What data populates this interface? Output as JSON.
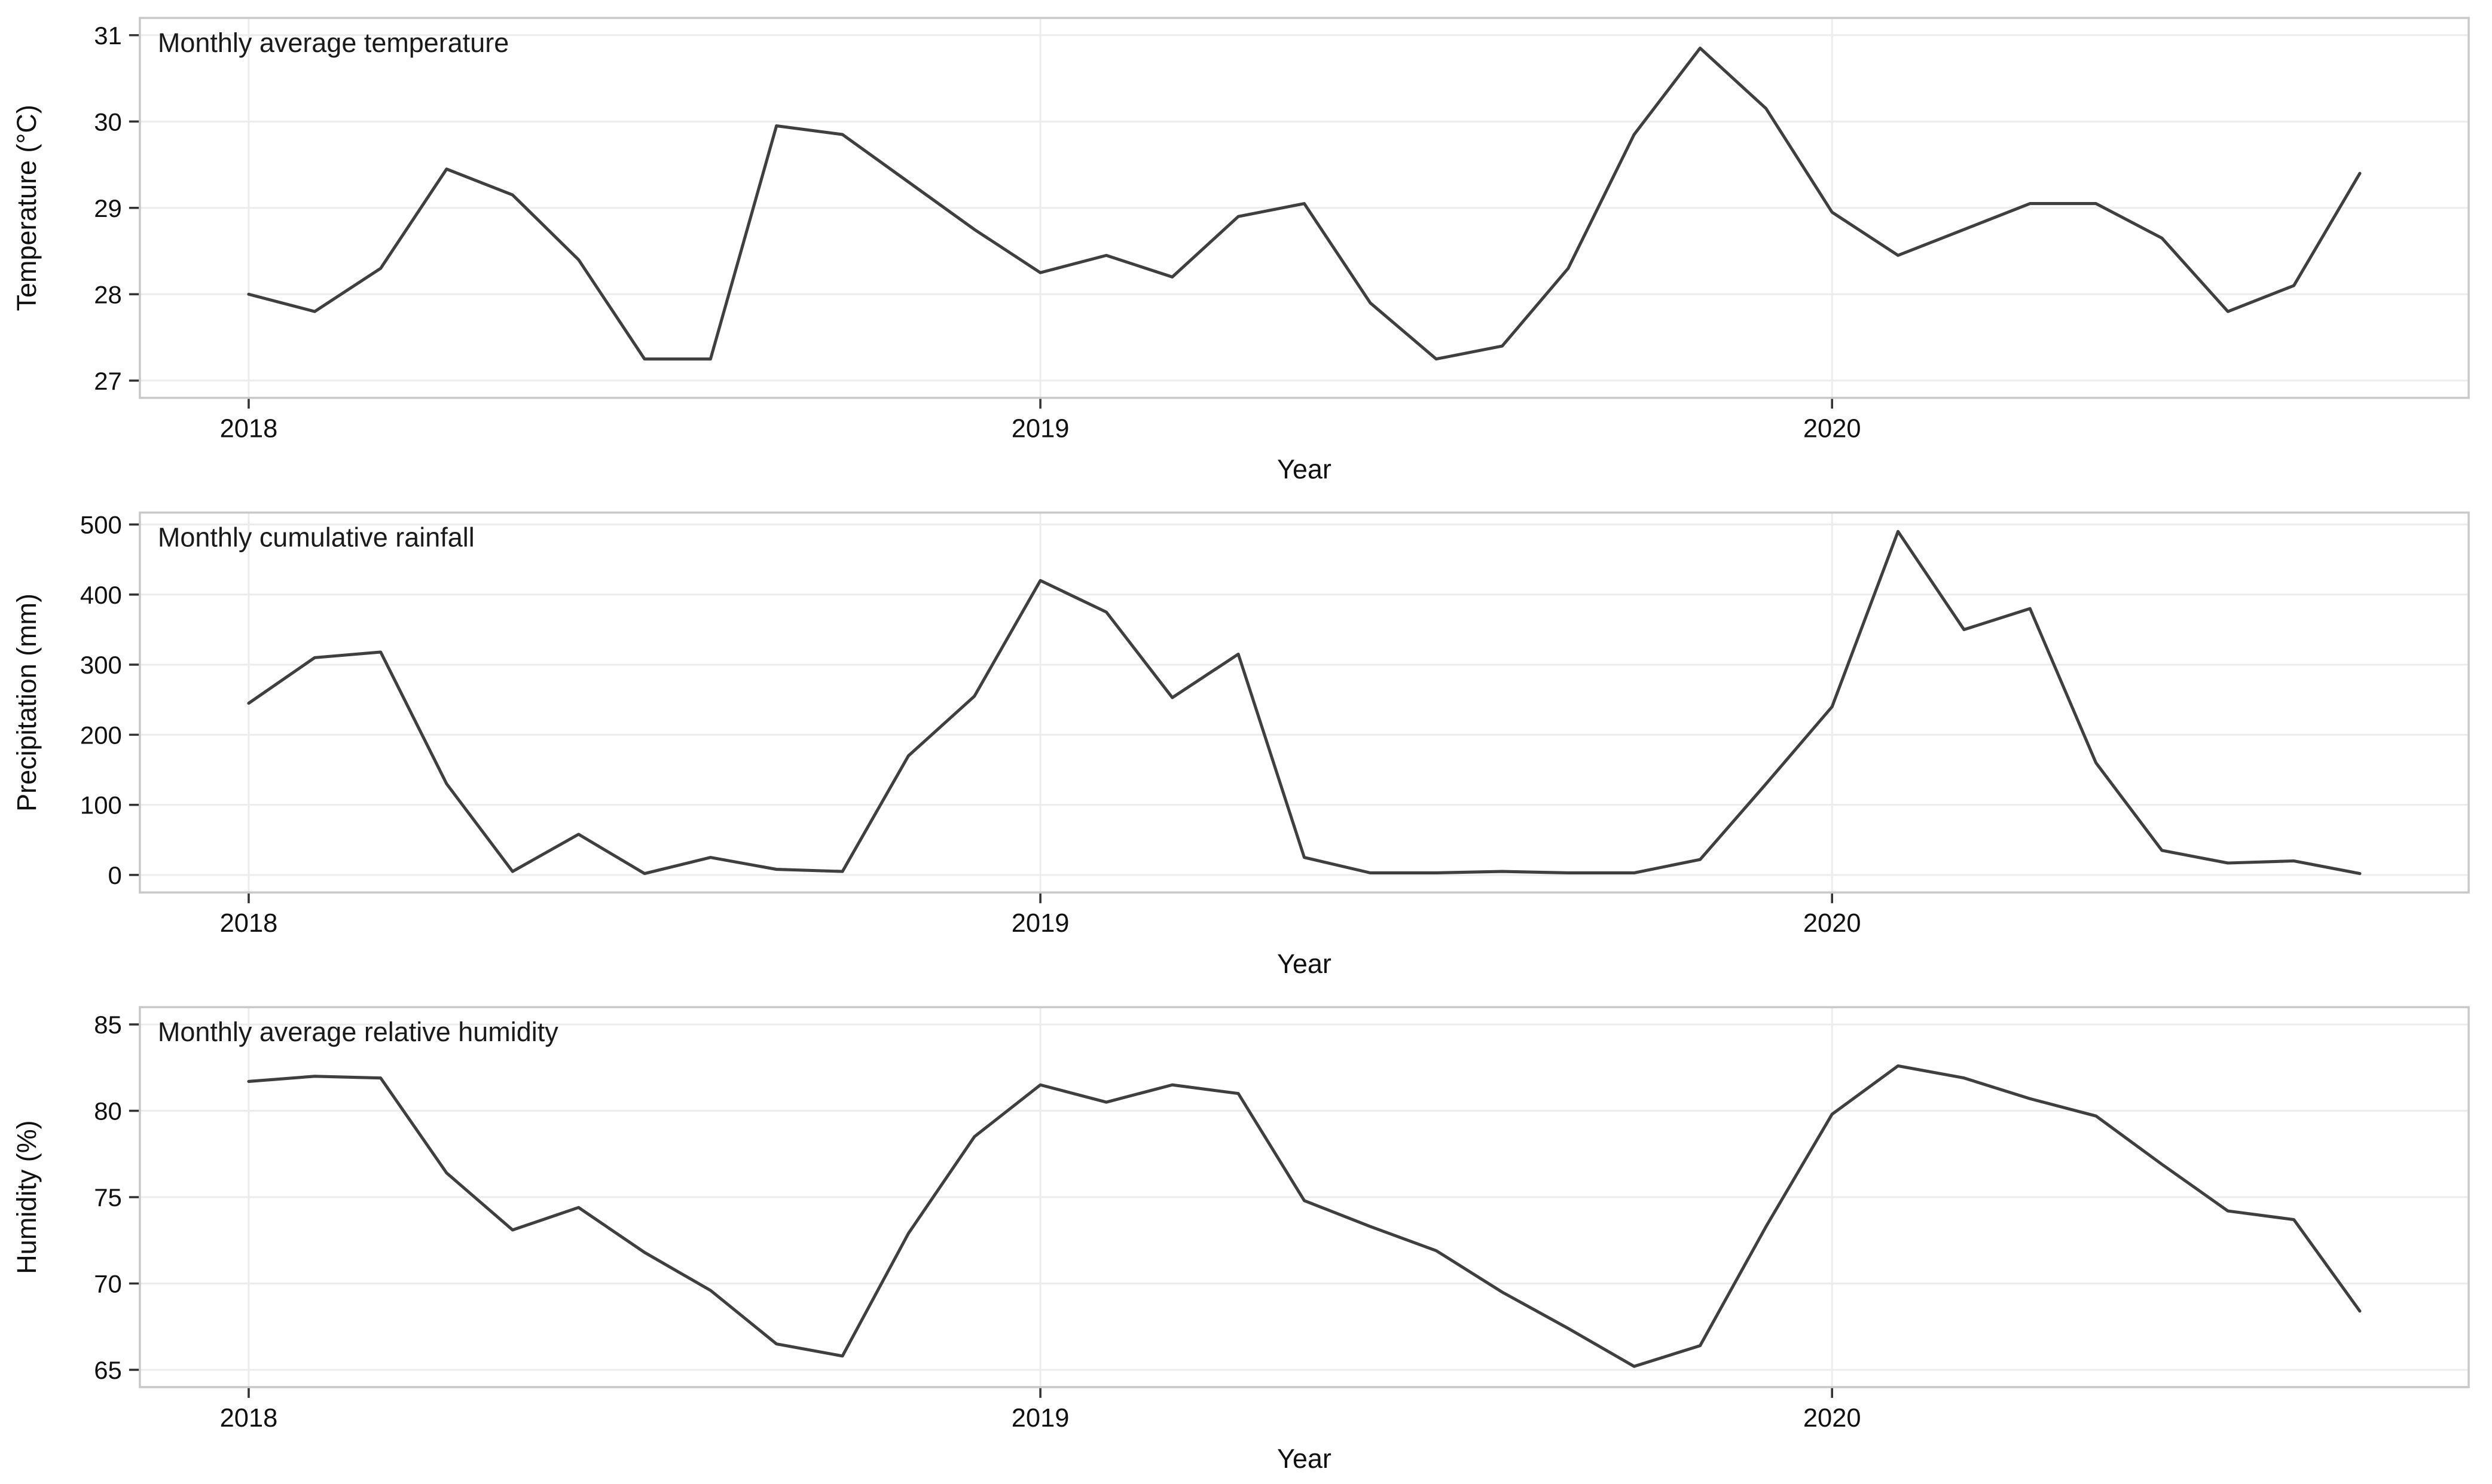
{
  "style": {
    "background": "#ffffff",
    "line_color": "#3f3f3f",
    "grid_color": "#ececec",
    "border_color": "#c9c9c9",
    "text_color": "#111111"
  },
  "chart_data": [
    {
      "type": "line",
      "title": "Monthly average temperature",
      "xlabel": "Year",
      "ylabel": "Temperature (°C)",
      "yticks": [
        27,
        28,
        29,
        30,
        31
      ],
      "ylim": [
        26.8,
        31.2
      ],
      "x_tick_labels": [
        "2018",
        "2019",
        "2020"
      ],
      "x_tick_positions": [
        0,
        12,
        24
      ],
      "x_start": "2018-01",
      "x_interval": "month",
      "grid": "major",
      "legend": "none",
      "values": [
        28.0,
        27.8,
        28.3,
        29.45,
        29.15,
        28.4,
        27.25,
        27.25,
        29.95,
        29.85,
        29.3,
        28.75,
        28.25,
        28.45,
        28.2,
        28.9,
        29.05,
        27.9,
        27.25,
        27.4,
        28.3,
        29.85,
        30.85,
        30.15,
        28.95,
        28.45,
        28.75,
        29.05,
        29.05,
        28.65,
        27.8,
        28.1,
        29.4
      ]
    },
    {
      "type": "line",
      "title": "Monthly cumulative rainfall",
      "xlabel": "Year",
      "ylabel": "Precipitation (mm)",
      "yticks": [
        0,
        100,
        200,
        300,
        400,
        500
      ],
      "ylim": [
        -25,
        517
      ],
      "x_tick_labels": [
        "2018",
        "2019",
        "2020"
      ],
      "x_tick_positions": [
        0,
        12,
        24
      ],
      "x_start": "2018-01",
      "x_interval": "month",
      "grid": "major",
      "legend": "none",
      "values": [
        245,
        310,
        318,
        130,
        5,
        58,
        2,
        25,
        8,
        5,
        170,
        255,
        420,
        375,
        253,
        315,
        25,
        3,
        3,
        5,
        3,
        3,
        22,
        130,
        240,
        490,
        350,
        380,
        160,
        35,
        17,
        20,
        2
      ]
    },
    {
      "type": "line",
      "title": "Monthly average relative humidity",
      "xlabel": "Year",
      "ylabel": "Humidity (%)",
      "yticks": [
        65,
        70,
        75,
        80,
        85
      ],
      "ylim": [
        64,
        86
      ],
      "x_tick_labels": [
        "2018",
        "2019",
        "2020"
      ],
      "x_tick_positions": [
        0,
        12,
        24
      ],
      "x_start": "2018-01",
      "x_interval": "month",
      "grid": "major",
      "legend": "none",
      "values": [
        81.7,
        82.0,
        81.9,
        76.4,
        73.1,
        74.4,
        71.8,
        69.6,
        66.5,
        65.8,
        72.9,
        78.5,
        81.5,
        80.5,
        81.5,
        81.0,
        74.8,
        73.3,
        71.9,
        69.5,
        67.4,
        65.2,
        66.4,
        73.3,
        79.8,
        82.6,
        81.9,
        80.7,
        79.7,
        76.9,
        74.2,
        73.7,
        68.4
      ]
    }
  ]
}
